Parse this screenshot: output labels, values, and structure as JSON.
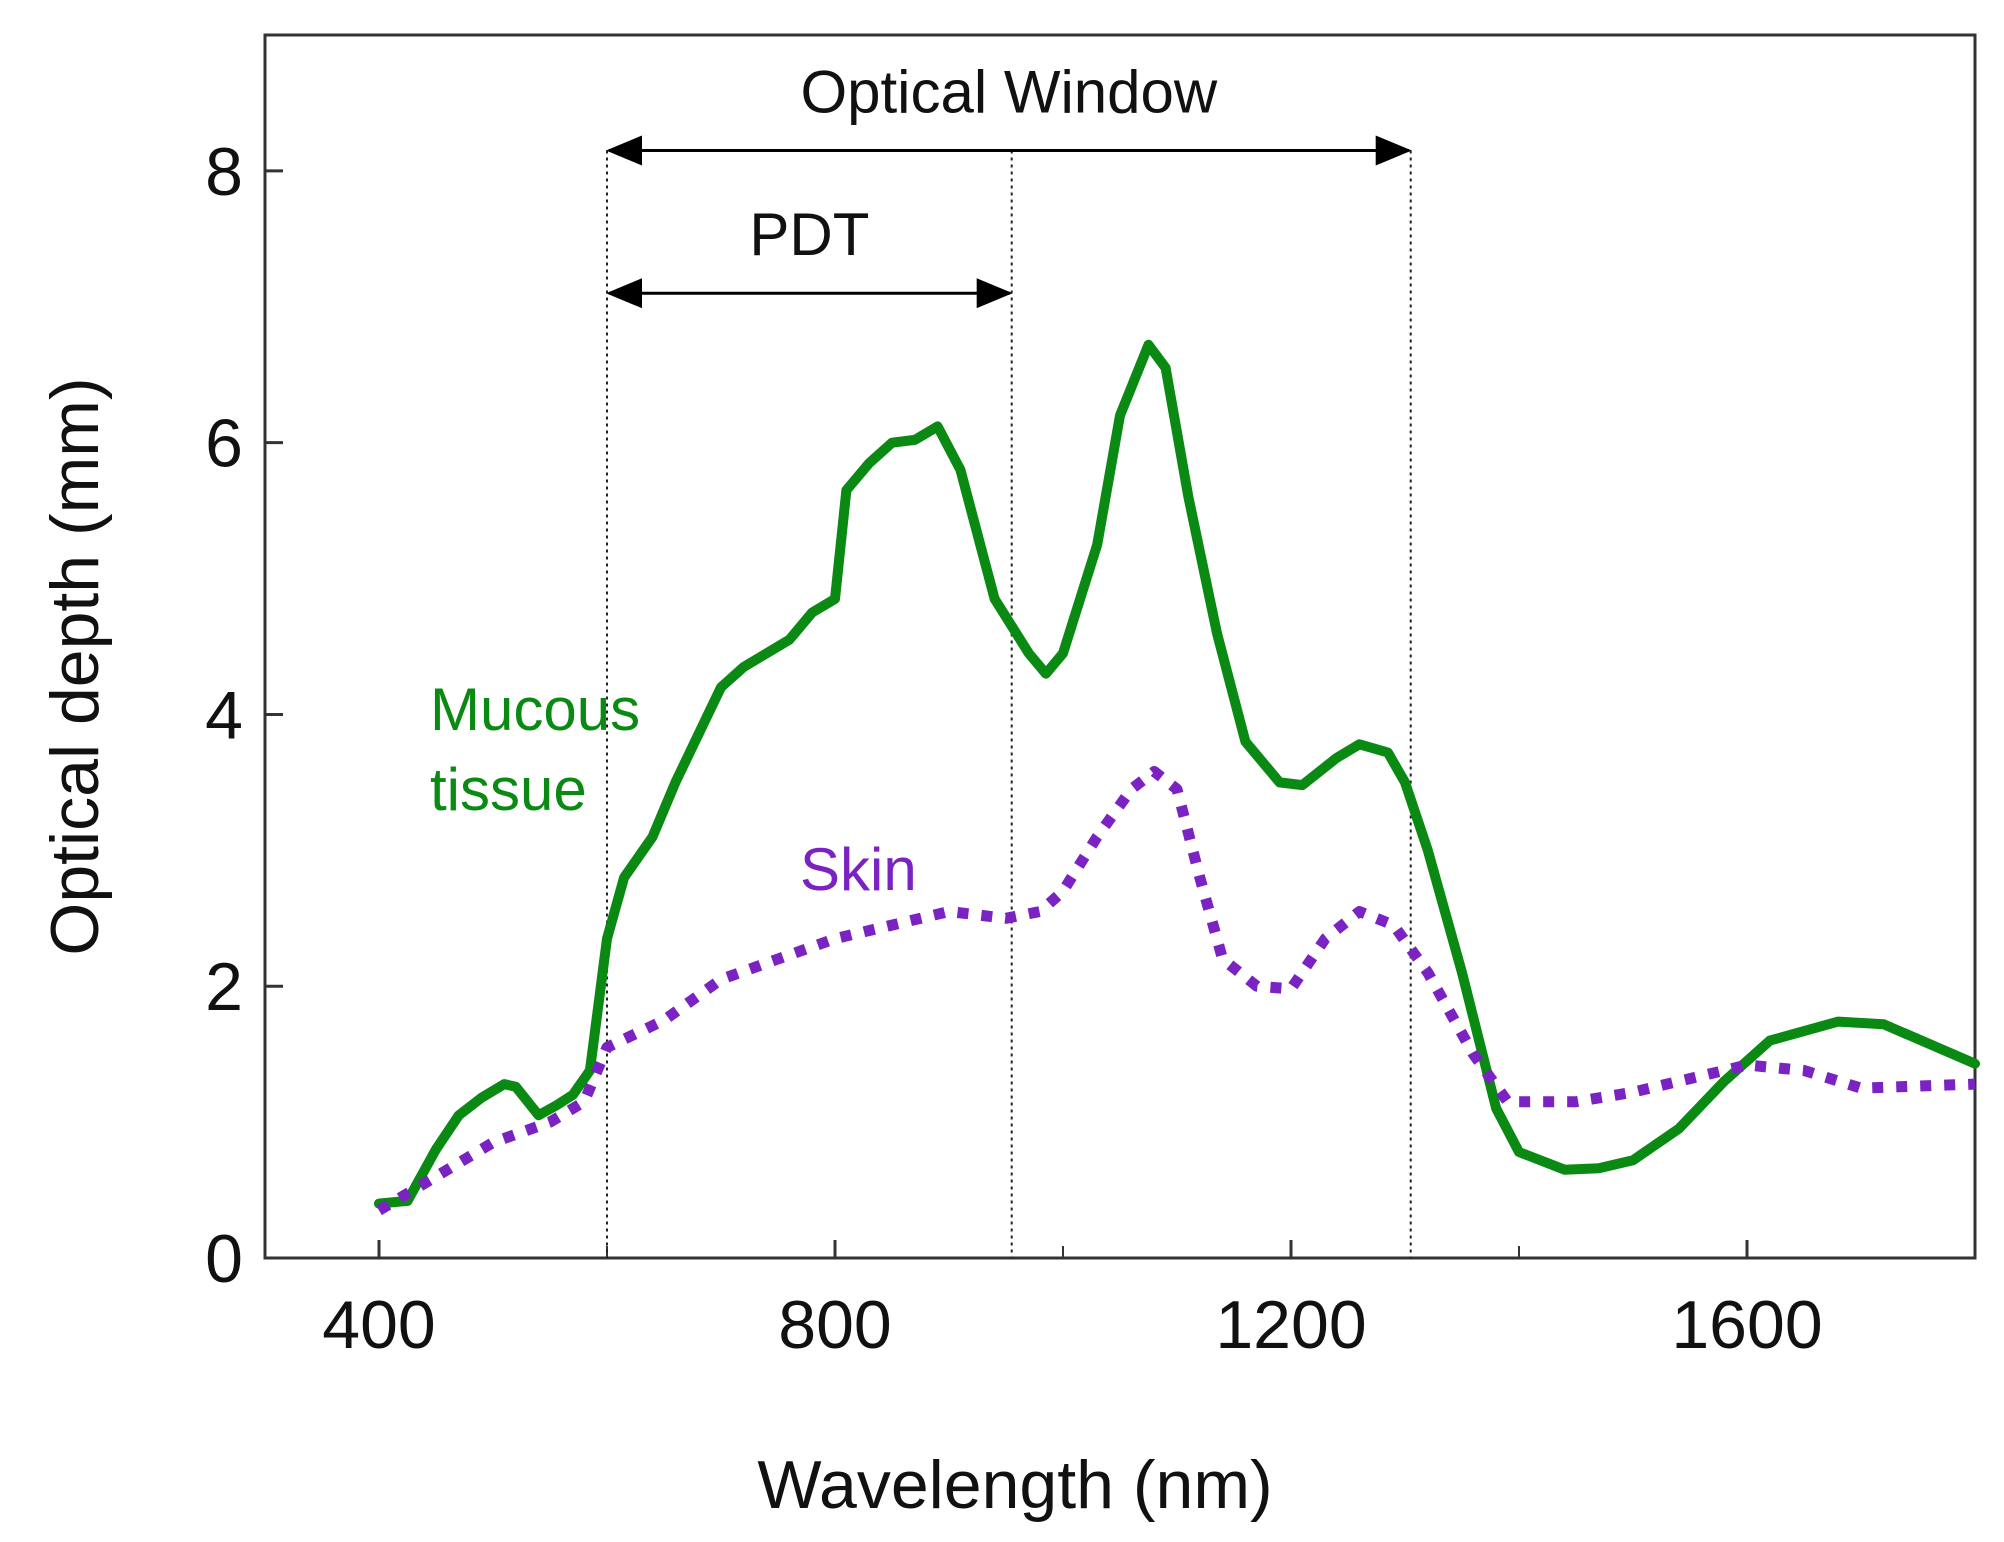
{
  "chart_data": {
    "type": "line",
    "title": "",
    "xlabel": "Wavelength (nm)",
    "ylabel": "Optical depth (mm)",
    "xlim": [
      300,
      1800
    ],
    "ylim": [
      0,
      9
    ],
    "x_ticks": [
      "400",
      "800",
      "1200",
      "1600"
    ],
    "y_ticks": [
      "0",
      "2",
      "4",
      "6",
      "8"
    ],
    "grid": false,
    "legend": "none",
    "series": [
      {
        "name": "Mucous tissue",
        "style": "solid",
        "color": "#0a8a12",
        "points": [
          [
            400,
            0.4
          ],
          [
            425,
            0.42
          ],
          [
            450,
            0.8
          ],
          [
            470,
            1.05
          ],
          [
            490,
            1.18
          ],
          [
            510,
            1.28
          ],
          [
            520,
            1.26
          ],
          [
            540,
            1.05
          ],
          [
            555,
            1.12
          ],
          [
            570,
            1.2
          ],
          [
            585,
            1.38
          ],
          [
            600,
            2.35
          ],
          [
            615,
            2.8
          ],
          [
            640,
            3.1
          ],
          [
            660,
            3.5
          ],
          [
            680,
            3.85
          ],
          [
            700,
            4.2
          ],
          [
            720,
            4.35
          ],
          [
            760,
            4.55
          ],
          [
            780,
            4.75
          ],
          [
            800,
            4.85
          ],
          [
            810,
            5.65
          ],
          [
            830,
            5.85
          ],
          [
            850,
            6.0
          ],
          [
            870,
            6.02
          ],
          [
            890,
            6.12
          ],
          [
            910,
            5.8
          ],
          [
            940,
            4.85
          ],
          [
            970,
            4.45
          ],
          [
            985,
            4.3
          ],
          [
            1000,
            4.45
          ],
          [
            1030,
            5.25
          ],
          [
            1050,
            6.2
          ],
          [
            1075,
            6.72
          ],
          [
            1090,
            6.55
          ],
          [
            1110,
            5.6
          ],
          [
            1135,
            4.6
          ],
          [
            1160,
            3.8
          ],
          [
            1190,
            3.5
          ],
          [
            1210,
            3.48
          ],
          [
            1240,
            3.68
          ],
          [
            1260,
            3.78
          ],
          [
            1285,
            3.72
          ],
          [
            1300,
            3.5
          ],
          [
            1320,
            3.0
          ],
          [
            1350,
            2.1
          ],
          [
            1380,
            1.1
          ],
          [
            1400,
            0.78
          ],
          [
            1440,
            0.65
          ],
          [
            1470,
            0.66
          ],
          [
            1500,
            0.72
          ],
          [
            1540,
            0.95
          ],
          [
            1580,
            1.3
          ],
          [
            1620,
            1.6
          ],
          [
            1680,
            1.74
          ],
          [
            1720,
            1.72
          ],
          [
            1800,
            1.43
          ]
        ]
      },
      {
        "name": "Skin",
        "style": "dotted",
        "color": "#7a22c2",
        "points": [
          [
            400,
            0.35
          ],
          [
            450,
            0.6
          ],
          [
            500,
            0.85
          ],
          [
            550,
            1.0
          ],
          [
            580,
            1.15
          ],
          [
            600,
            1.55
          ],
          [
            650,
            1.75
          ],
          [
            700,
            2.05
          ],
          [
            750,
            2.2
          ],
          [
            800,
            2.35
          ],
          [
            850,
            2.45
          ],
          [
            900,
            2.55
          ],
          [
            950,
            2.5
          ],
          [
            980,
            2.55
          ],
          [
            1000,
            2.7
          ],
          [
            1030,
            3.1
          ],
          [
            1060,
            3.45
          ],
          [
            1080,
            3.58
          ],
          [
            1100,
            3.45
          ],
          [
            1120,
            2.8
          ],
          [
            1140,
            2.2
          ],
          [
            1170,
            2.0
          ],
          [
            1200,
            1.98
          ],
          [
            1230,
            2.35
          ],
          [
            1260,
            2.55
          ],
          [
            1290,
            2.45
          ],
          [
            1320,
            2.1
          ],
          [
            1360,
            1.5
          ],
          [
            1390,
            1.15
          ],
          [
            1450,
            1.15
          ],
          [
            1500,
            1.22
          ],
          [
            1550,
            1.32
          ],
          [
            1600,
            1.42
          ],
          [
            1650,
            1.38
          ],
          [
            1700,
            1.25
          ],
          [
            1800,
            1.28
          ]
        ]
      }
    ],
    "annotations": [
      {
        "label": "Optical Window",
        "x_start": 600,
        "x_end": 1305,
        "y": 8.15
      },
      {
        "label": "PDT",
        "x_start": 600,
        "x_end": 955,
        "y": 7.1
      }
    ],
    "series_labels": [
      {
        "lines": [
          "Mucous",
          "tissue"
        ],
        "color": "#0a8a12"
      },
      {
        "lines": [
          "Skin"
        ],
        "color": "#7a22c2"
      }
    ]
  }
}
